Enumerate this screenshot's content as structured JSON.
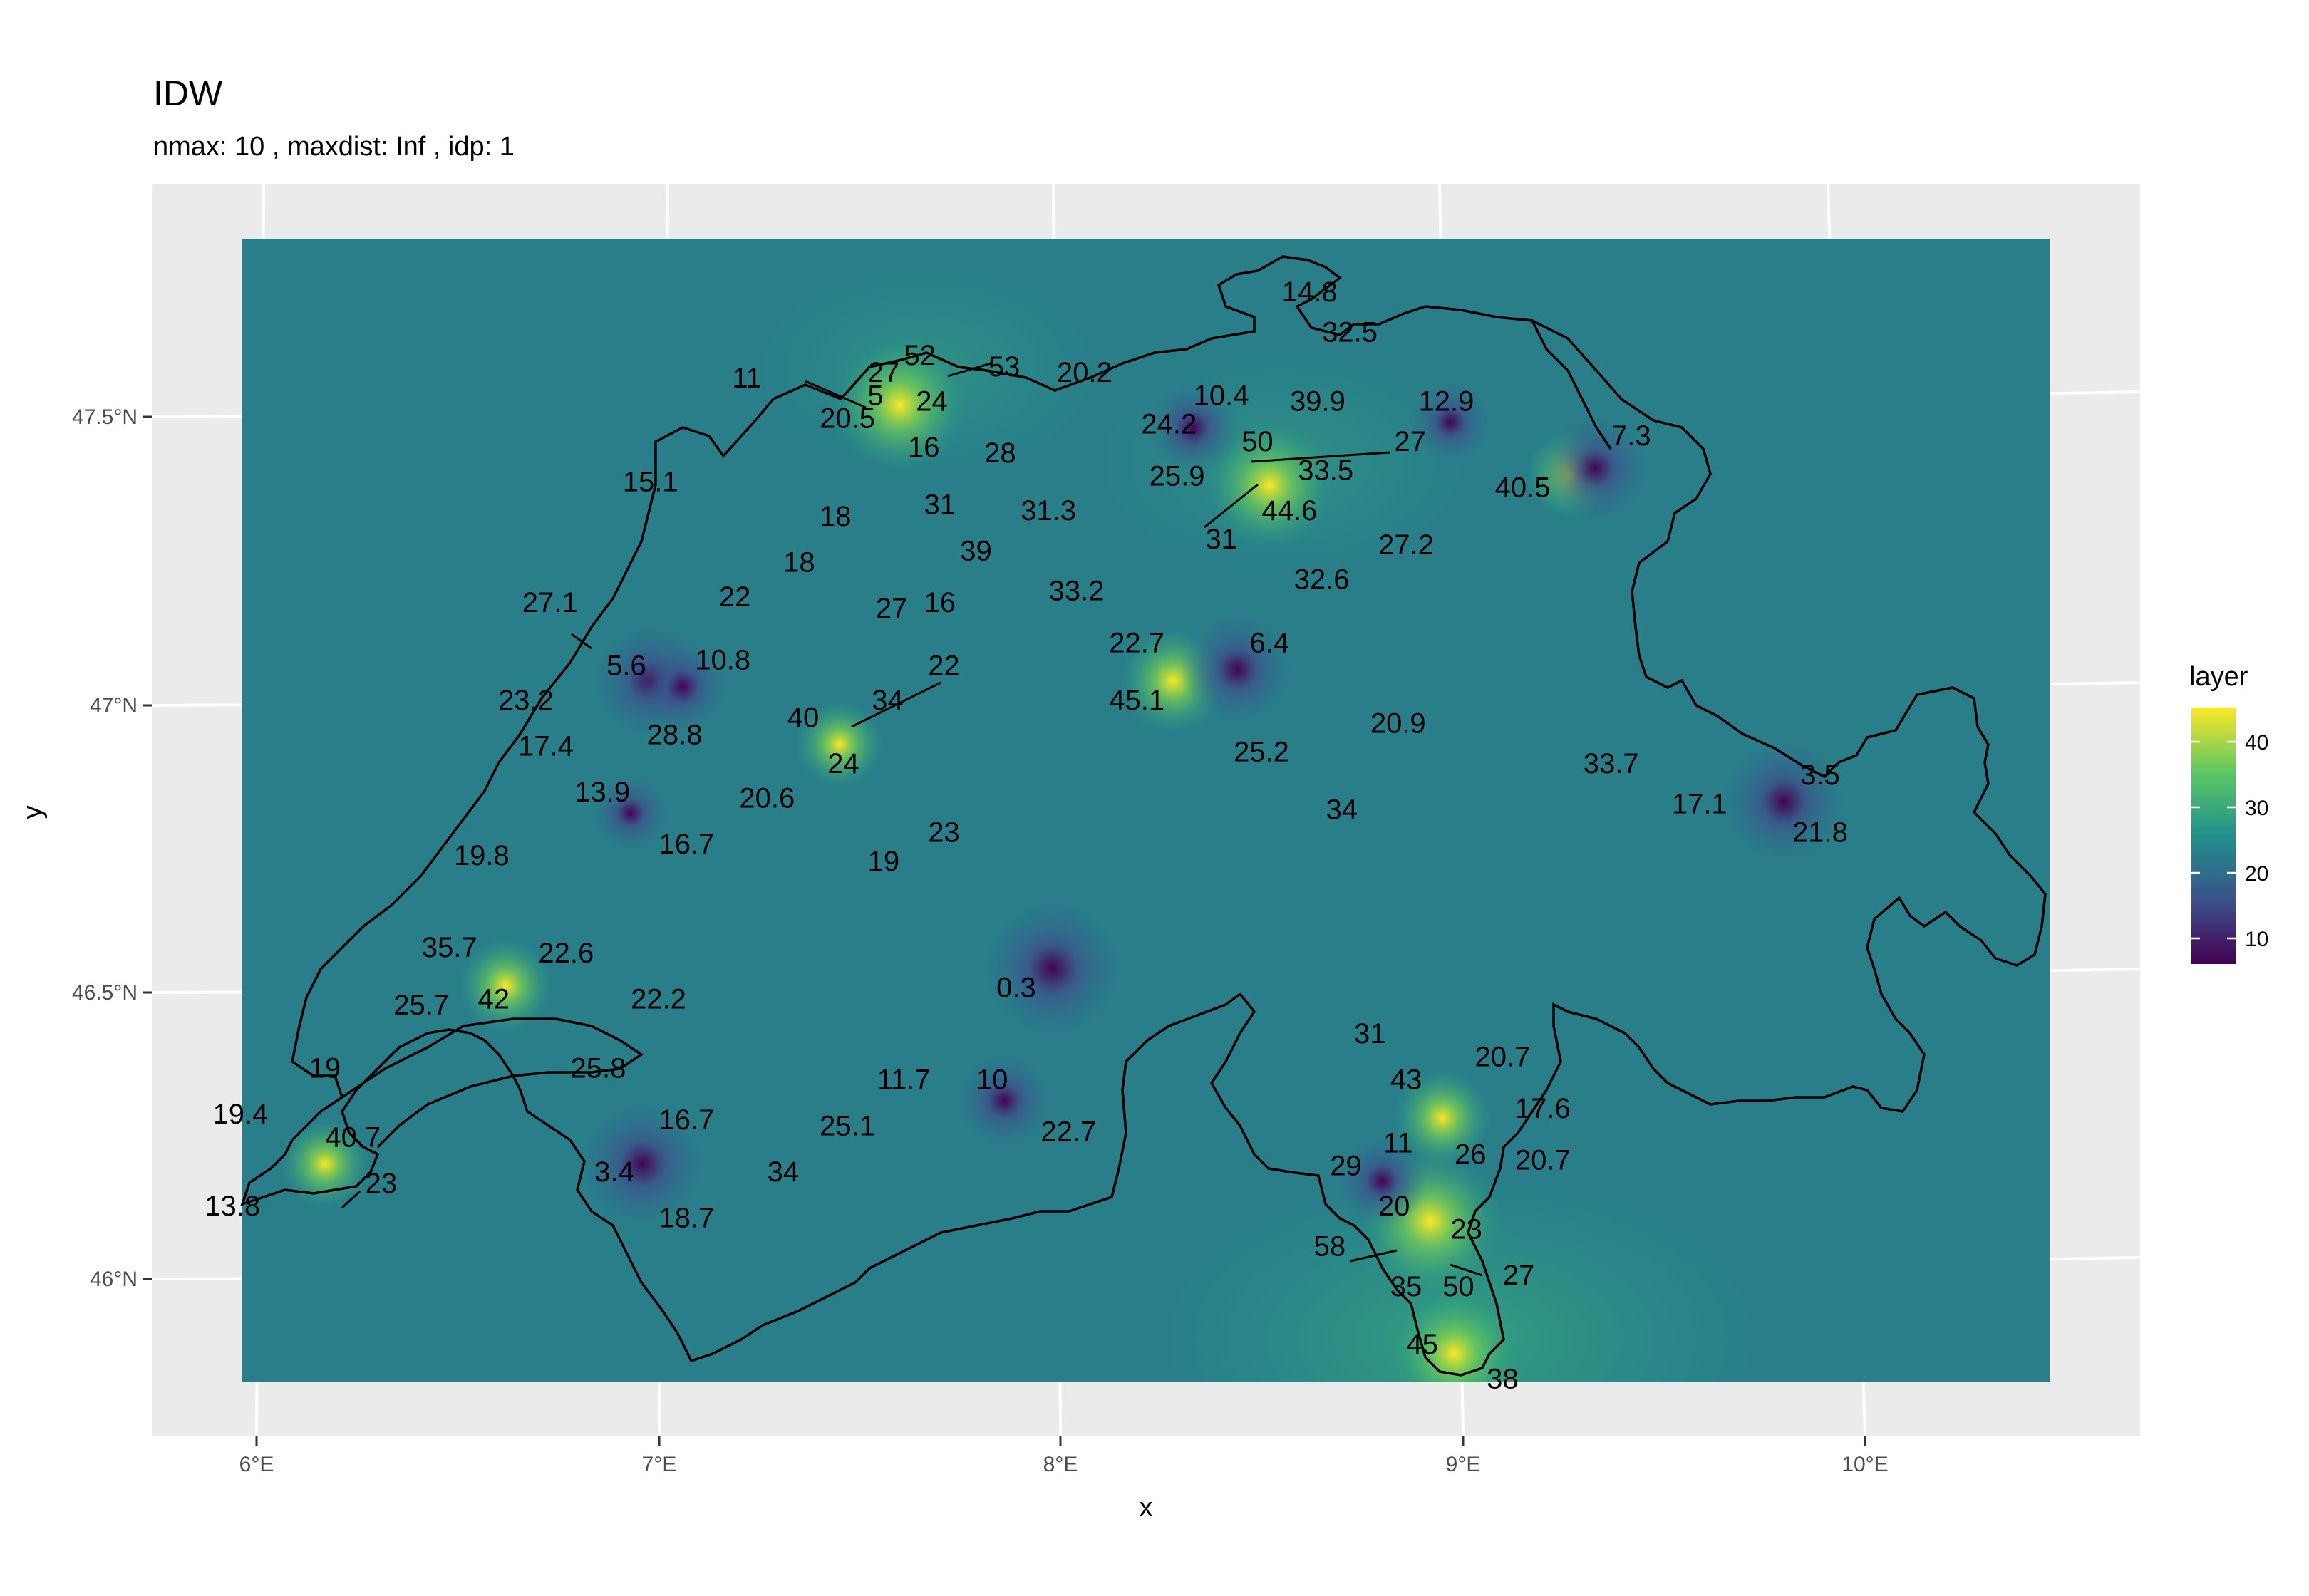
{
  "plot": {
    "title": "IDW",
    "subtitle": "nmax:  10 , maxdist:  Inf , idp:  1",
    "xlabel": "x",
    "ylabel": "y"
  },
  "axes": {
    "x_ticks": [
      "6°E",
      "7°E",
      "8°E",
      "9°E",
      "10°E"
    ],
    "y_ticks": [
      "47.5°N",
      "47°N",
      "46.5°N",
      "46°N"
    ]
  },
  "legend": {
    "title": "layer",
    "ticks": [
      "40",
      "30",
      "20",
      "10"
    ],
    "colors": [
      "#FDE725",
      "#5DC863",
      "#21908C",
      "#3B528B",
      "#440154"
    ]
  },
  "colors": {
    "panel_background": "#EBEBEB",
    "grid": "#FFFFFF",
    "raster_base": "#2A7E8A",
    "border": "#000000"
  },
  "labels": [
    {
      "text": "14.8",
      "lon": 8.62,
      "lat": 47.7
    },
    {
      "text": "32.5",
      "lon": 8.72,
      "lat": 47.63
    },
    {
      "text": "52",
      "lon": 7.65,
      "lat": 47.59
    },
    {
      "text": "53",
      "lon": 7.86,
      "lat": 47.57
    },
    {
      "text": "27",
      "lon": 7.56,
      "lat": 47.56
    },
    {
      "text": "11",
      "lon": 7.22,
      "lat": 47.55
    },
    {
      "text": "20.2",
      "lon": 8.06,
      "lat": 47.56
    },
    {
      "text": "24",
      "lon": 7.68,
      "lat": 47.51
    },
    {
      "text": "5",
      "lon": 7.54,
      "lat": 47.52
    },
    {
      "text": "20.5",
      "lon": 7.47,
      "lat": 47.48
    },
    {
      "text": "10.4",
      "lon": 8.4,
      "lat": 47.52
    },
    {
      "text": "39.9",
      "lon": 8.64,
      "lat": 47.51
    },
    {
      "text": "12.9",
      "lon": 8.96,
      "lat": 47.51
    },
    {
      "text": "24.2",
      "lon": 8.27,
      "lat": 47.47
    },
    {
      "text": "16",
      "lon": 7.66,
      "lat": 47.43
    },
    {
      "text": "28",
      "lon": 7.85,
      "lat": 47.42
    },
    {
      "text": "50",
      "lon": 8.49,
      "lat": 47.44
    },
    {
      "text": "27",
      "lon": 8.87,
      "lat": 47.44
    },
    {
      "text": "7.3",
      "lon": 9.42,
      "lat": 47.45
    },
    {
      "text": "15.1",
      "lon": 6.98,
      "lat": 47.37
    },
    {
      "text": "25.9",
      "lon": 8.29,
      "lat": 47.38
    },
    {
      "text": "33.5",
      "lon": 8.66,
      "lat": 47.39
    },
    {
      "text": "40.5",
      "lon": 9.15,
      "lat": 47.36
    },
    {
      "text": "18",
      "lon": 7.44,
      "lat": 47.31
    },
    {
      "text": "31",
      "lon": 7.7,
      "lat": 47.33
    },
    {
      "text": "31.3",
      "lon": 7.97,
      "lat": 47.32
    },
    {
      "text": "44.6",
      "lon": 8.57,
      "lat": 47.32
    },
    {
      "text": "39",
      "lon": 7.79,
      "lat": 47.25
    },
    {
      "text": "31",
      "lon": 8.4,
      "lat": 47.27
    },
    {
      "text": "27.2",
      "lon": 8.86,
      "lat": 47.26
    },
    {
      "text": "18",
      "lon": 7.35,
      "lat": 47.23
    },
    {
      "text": "33.2",
      "lon": 8.04,
      "lat": 47.18
    },
    {
      "text": "32.6",
      "lon": 8.65,
      "lat": 47.2
    },
    {
      "text": "27",
      "lon": 7.58,
      "lat": 47.15
    },
    {
      "text": "16",
      "lon": 7.7,
      "lat": 47.16
    },
    {
      "text": "22",
      "lon": 7.19,
      "lat": 47.17
    },
    {
      "text": "27.1",
      "lon": 6.73,
      "lat": 47.16
    },
    {
      "text": "22.7",
      "lon": 8.19,
      "lat": 47.09
    },
    {
      "text": "6.4",
      "lon": 8.52,
      "lat": 47.09
    },
    {
      "text": "5.6",
      "lon": 6.92,
      "lat": 47.05
    },
    {
      "text": "10.8",
      "lon": 7.16,
      "lat": 47.06
    },
    {
      "text": "22",
      "lon": 7.71,
      "lat": 47.05
    },
    {
      "text": "23.2",
      "lon": 6.67,
      "lat": 46.99
    },
    {
      "text": "45.1",
      "lon": 8.19,
      "lat": 46.99
    },
    {
      "text": "34",
      "lon": 7.57,
      "lat": 46.99
    },
    {
      "text": "40",
      "lon": 7.36,
      "lat": 46.96
    },
    {
      "text": "20.9",
      "lon": 8.84,
      "lat": 46.95
    },
    {
      "text": "28.8",
      "lon": 7.04,
      "lat": 46.93
    },
    {
      "text": "17.4",
      "lon": 6.72,
      "lat": 46.91
    },
    {
      "text": "25.2",
      "lon": 8.5,
      "lat": 46.9
    },
    {
      "text": "24",
      "lon": 7.46,
      "lat": 46.88
    },
    {
      "text": "33.7",
      "lon": 9.37,
      "lat": 46.88
    },
    {
      "text": "3.5",
      "lon": 9.89,
      "lat": 46.86
    },
    {
      "text": "13.9",
      "lon": 6.86,
      "lat": 46.83
    },
    {
      "text": "20.6",
      "lon": 7.27,
      "lat": 46.82
    },
    {
      "text": "17.1",
      "lon": 9.59,
      "lat": 46.81
    },
    {
      "text": "34",
      "lon": 8.7,
      "lat": 46.8
    },
    {
      "text": "21.8",
      "lon": 9.89,
      "lat": 46.76
    },
    {
      "text": "23",
      "lon": 7.71,
      "lat": 46.76
    },
    {
      "text": "16.7",
      "lon": 7.07,
      "lat": 46.74
    },
    {
      "text": "19.8",
      "lon": 6.56,
      "lat": 46.72
    },
    {
      "text": "19",
      "lon": 7.56,
      "lat": 46.71
    },
    {
      "text": "35.7",
      "lon": 6.48,
      "lat": 46.56
    },
    {
      "text": "22.6",
      "lon": 6.77,
      "lat": 46.55
    },
    {
      "text": "0.3",
      "lon": 7.89,
      "lat": 46.49
    },
    {
      "text": "42",
      "lon": 6.59,
      "lat": 46.47
    },
    {
      "text": "25.7",
      "lon": 6.41,
      "lat": 46.46
    },
    {
      "text": "22.2",
      "lon": 7.0,
      "lat": 46.47
    },
    {
      "text": "31",
      "lon": 8.77,
      "lat": 46.41
    },
    {
      "text": "20.7",
      "lon": 9.1,
      "lat": 46.37
    },
    {
      "text": "19",
      "lon": 6.17,
      "lat": 46.35
    },
    {
      "text": "25.8",
      "lon": 6.85,
      "lat": 46.35
    },
    {
      "text": "43",
      "lon": 8.86,
      "lat": 46.33
    },
    {
      "text": "11.7",
      "lon": 7.61,
      "lat": 46.33
    },
    {
      "text": "10",
      "lon": 7.83,
      "lat": 46.33
    },
    {
      "text": "17.6",
      "lon": 9.2,
      "lat": 46.28
    },
    {
      "text": "19.4",
      "lon": 5.96,
      "lat": 46.27
    },
    {
      "text": "16.7",
      "lon": 7.07,
      "lat": 46.26
    },
    {
      "text": "25.1",
      "lon": 7.47,
      "lat": 46.25
    },
    {
      "text": "22.7",
      "lon": 8.02,
      "lat": 46.24
    },
    {
      "text": "40.7",
      "lon": 6.24,
      "lat": 46.23
    },
    {
      "text": "11",
      "lon": 8.84,
      "lat": 46.22
    },
    {
      "text": "26",
      "lon": 9.02,
      "lat": 46.2
    },
    {
      "text": "20.7",
      "lon": 9.2,
      "lat": 46.19
    },
    {
      "text": "29",
      "lon": 8.71,
      "lat": 46.18
    },
    {
      "text": "3.4",
      "lon": 6.89,
      "lat": 46.17
    },
    {
      "text": "34",
      "lon": 7.31,
      "lat": 46.17
    },
    {
      "text": "23",
      "lon": 6.31,
      "lat": 46.15
    },
    {
      "text": "13.8",
      "lon": 5.94,
      "lat": 46.11
    },
    {
      "text": "20",
      "lon": 8.83,
      "lat": 46.11
    },
    {
      "text": "18.7",
      "lon": 7.07,
      "lat": 46.09
    },
    {
      "text": "23",
      "lon": 9.01,
      "lat": 46.07
    },
    {
      "text": "58",
      "lon": 8.67,
      "lat": 46.04
    },
    {
      "text": "27",
      "lon": 9.14,
      "lat": 45.99
    },
    {
      "text": "35",
      "lon": 8.86,
      "lat": 45.97
    },
    {
      "text": "50",
      "lon": 8.99,
      "lat": 45.97
    },
    {
      "text": "45",
      "lon": 8.9,
      "lat": 45.87
    },
    {
      "text": "38",
      "lon": 9.1,
      "lat": 45.81
    }
  ],
  "hotspots": [
    {
      "lon": 7.6,
      "lat": 47.52,
      "value": 52
    },
    {
      "lon": 8.52,
      "lat": 47.38,
      "value": 50
    },
    {
      "lon": 9.27,
      "lat": 47.4,
      "value": 40.5
    },
    {
      "lon": 8.28,
      "lat": 47.04,
      "value": 45.1
    },
    {
      "lon": 7.45,
      "lat": 46.93,
      "value": 40
    },
    {
      "lon": 6.62,
      "lat": 46.51,
      "value": 42
    },
    {
      "lon": 6.17,
      "lat": 46.2,
      "value": 40.7
    },
    {
      "lon": 8.92,
      "lat": 46.1,
      "value": 58
    },
    {
      "lon": 8.95,
      "lat": 46.28,
      "value": 43
    },
    {
      "lon": 8.98,
      "lat": 45.87,
      "value": 50
    },
    {
      "lon": 7.98,
      "lat": 46.54,
      "value": 0.3
    },
    {
      "lon": 9.8,
      "lat": 46.83,
      "value": 3.5
    },
    {
      "lon": 9.33,
      "lat": 47.41,
      "value": 7.3
    },
    {
      "lon": 6.96,
      "lat": 46.2,
      "value": 3.4
    },
    {
      "lon": 6.98,
      "lat": 47.04,
      "value": 5.6
    },
    {
      "lon": 8.44,
      "lat": 47.06,
      "value": 6.4
    },
    {
      "lon": 7.06,
      "lat": 47.03,
      "value": 10.8
    },
    {
      "lon": 8.33,
      "lat": 47.48,
      "value": 10.4
    },
    {
      "lon": 8.97,
      "lat": 47.49,
      "value": 12.9
    },
    {
      "lon": 7.86,
      "lat": 46.31,
      "value": 10
    },
    {
      "lon": 8.8,
      "lat": 46.17,
      "value": 11
    },
    {
      "lon": 6.93,
      "lat": 46.81,
      "value": 13.9
    }
  ]
}
